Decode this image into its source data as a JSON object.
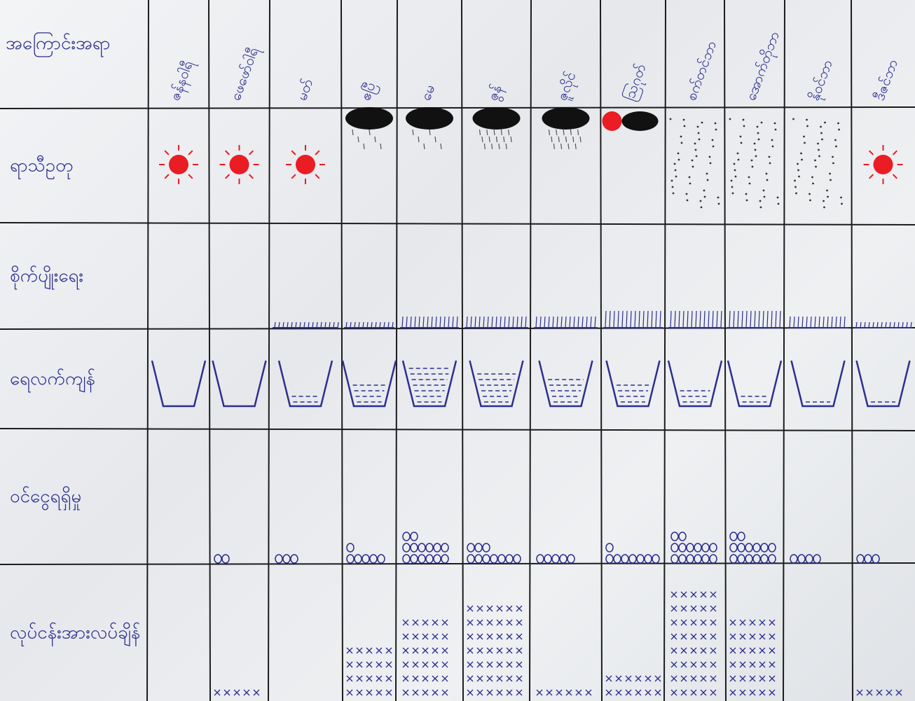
{
  "chart_data": {
    "type": "table",
    "header_label": "အကြောင်းအရာ",
    "months": [
      "ဇန်နဝါရီ",
      "ဖေဖော်ဝါရီ",
      "မတ်",
      "ဧပြီ",
      "မေ",
      "ဇွန်",
      "ဇူလိုင်",
      "ဩဂုတ်",
      "စက်တင်ဘာ",
      "အောက်တိုဘာ",
      "နိုဝင်ဘာ",
      "ဒီဇင်ဘာ"
    ],
    "rows": [
      {
        "label": "ရာသီဥတု"
      },
      {
        "label": "စိုက်ပျိုးရေး"
      },
      {
        "label": "ရေလက်ကျန်"
      },
      {
        "label": "ဝင်ငွေရရှိမှု"
      },
      {
        "label": "လုပ်ငန်းအားလပ်ချိန်"
      }
    ],
    "weather": [
      "sun",
      "sun",
      "sun",
      "cloud",
      "cloud",
      "rain-cloud",
      "rain-cloud",
      "sun-cloud",
      "drizzle",
      "drizzle",
      "drizzle",
      "sun"
    ],
    "water_level": [
      0.0,
      0.08,
      0.3,
      0.55,
      0.85,
      0.75,
      0.6,
      0.5,
      0.4,
      0.3,
      0.2,
      0.1
    ],
    "crop_growth": [
      0,
      0,
      1,
      1,
      2,
      2,
      2,
      3,
      3,
      3,
      2,
      1
    ],
    "income_bags": [
      0,
      2,
      3,
      6,
      14,
      10,
      5,
      8,
      14,
      14,
      4,
      3
    ],
    "free_time": [
      0.05,
      0.1,
      0.0,
      0.4,
      0.7,
      0.8,
      0.1,
      0.25,
      0.9,
      0.65,
      0.05,
      0.1
    ]
  },
  "colors": {
    "ink": "#2b2f8f",
    "line": "#1c1c1c",
    "sun": "#ea1c24",
    "cloud": "#111111"
  }
}
